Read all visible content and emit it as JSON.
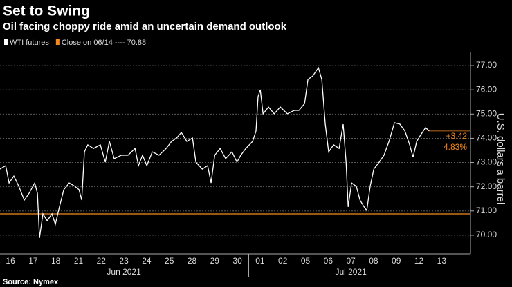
{
  "chart_data": {
    "type": "line",
    "title": "Set to Swing",
    "subtitle": "Oil facing choppy ride amid an uncertain demand outlook",
    "y_label": "U.S. dollars a barrel",
    "source": "Source: Nymex",
    "x": [
      -0.46,
      -0.21,
      -0.06,
      0.15,
      0.37,
      0.61,
      0.82,
      1.07,
      1.19,
      1.28,
      1.43,
      1.62,
      1.83,
      1.98,
      2.16,
      2.35,
      2.59,
      2.84,
      3.02,
      3.14,
      3.26,
      3.41,
      3.66,
      3.96,
      4.18,
      4.36,
      4.57,
      4.88,
      5.18,
      5.49,
      5.64,
      5.82,
      6.01,
      6.25,
      6.55,
      6.86,
      7.1,
      7.32,
      7.53,
      7.77,
      8.02,
      8.17,
      8.45,
      8.69,
      8.84,
      9.0,
      9.24,
      9.48,
      9.76,
      9.98,
      10.15,
      10.37,
      10.67,
      10.82,
      10.91,
      11.01,
      11.13,
      11.37,
      11.62,
      11.89,
      12.2,
      12.5,
      12.71,
      12.96,
      13.11,
      13.32,
      13.57,
      13.72,
      13.87,
      14.02,
      14.24,
      14.48,
      14.66,
      14.79,
      14.88,
      15.03,
      15.24,
      15.4,
      15.58,
      15.7,
      15.85,
      16.01,
      16.25,
      16.46,
      16.68,
      16.92,
      17.16,
      17.38,
      17.59,
      17.74,
      17.9,
      18.08,
      18.29,
      18.45
    ],
    "series": [
      {
        "name": "WTI futures",
        "color": "#ffffff",
        "values": [
          72.73,
          72.87,
          72.16,
          72.44,
          72.02,
          71.45,
          71.73,
          72.16,
          71.73,
          69.89,
          70.88,
          70.6,
          70.88,
          70.45,
          71.17,
          71.88,
          72.16,
          72.02,
          71.88,
          71.45,
          73.44,
          73.73,
          73.58,
          73.73,
          73.02,
          73.87,
          73.16,
          73.3,
          73.3,
          73.58,
          72.87,
          73.3,
          72.87,
          73.44,
          73.3,
          73.58,
          73.87,
          74.01,
          74.24,
          73.87,
          74.01,
          73.02,
          72.73,
          72.87,
          72.16,
          73.3,
          73.58,
          73.16,
          73.44,
          73.02,
          73.3,
          73.58,
          73.87,
          74.3,
          75.72,
          76.0,
          75.01,
          75.29,
          75.01,
          75.29,
          75.01,
          75.15,
          75.15,
          75.43,
          76.43,
          76.57,
          76.91,
          76.43,
          74.58,
          73.44,
          73.73,
          73.58,
          74.58,
          73.02,
          71.17,
          72.16,
          72.02,
          71.45,
          71.17,
          71.02,
          72.02,
          72.73,
          73.02,
          73.3,
          73.87,
          74.64,
          74.58,
          74.3,
          73.73,
          73.22,
          73.87,
          74.15,
          74.44,
          74.3
        ]
      },
      {
        "name": "Close on 06/14 ---- 70.88",
        "color": "#f5891f",
        "reference": 70.88
      }
    ],
    "annotations": [
      "+3.42",
      "4.83%"
    ],
    "xlim": [
      -0.46,
      20.27
    ],
    "xticks": [
      {
        "value": 0,
        "label": "16"
      },
      {
        "value": 1,
        "label": "17"
      },
      {
        "value": 2,
        "label": "18"
      },
      {
        "value": 3,
        "label": "21"
      },
      {
        "value": 4,
        "label": "22"
      },
      {
        "value": 5,
        "label": "23"
      },
      {
        "value": 6,
        "label": "24"
      },
      {
        "value": 7,
        "label": "25"
      },
      {
        "value": 8,
        "label": "28"
      },
      {
        "value": 9,
        "label": "29"
      },
      {
        "value": 10,
        "label": "30"
      },
      {
        "value": 11,
        "label": "01"
      },
      {
        "value": 12,
        "label": "02"
      },
      {
        "value": 13,
        "label": "05"
      },
      {
        "value": 14,
        "label": "06"
      },
      {
        "value": 15,
        "label": "07"
      },
      {
        "value": 16,
        "label": "08"
      },
      {
        "value": 17,
        "label": "09"
      },
      {
        "value": 18,
        "label": "12"
      },
      {
        "value": 19,
        "label": "13"
      }
    ],
    "x_groups": [
      {
        "label": "Jun 2021",
        "start": 0,
        "end": 10
      },
      {
        "label": "Jul 2021",
        "start": 11,
        "end": 19
      }
    ],
    "ylim": [
      69.23,
      77.57
    ],
    "yticks": [
      {
        "value": 70,
        "label": "70.00"
      },
      {
        "value": 71,
        "label": "71.00"
      },
      {
        "value": 72,
        "label": "72.00"
      },
      {
        "value": 73,
        "label": "73.00"
      },
      {
        "value": 74,
        "label": "74.00"
      },
      {
        "value": 75,
        "label": "75.00"
      },
      {
        "value": 76,
        "label": "76.00"
      },
      {
        "value": 77,
        "label": "77.00"
      }
    ],
    "grid": true
  }
}
